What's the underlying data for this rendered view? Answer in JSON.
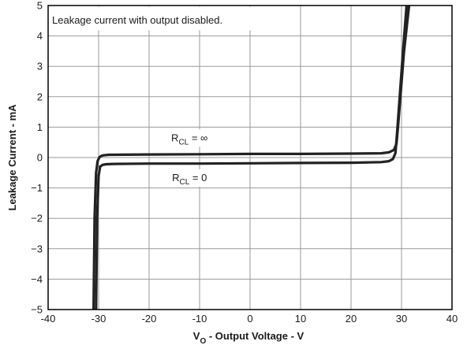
{
  "chart_data": {
    "type": "line",
    "title": "",
    "annotation": "Leakage current with output disabled.",
    "xlabel": {
      "main": "V",
      "sub": "O",
      "rest": " - Output Voltage - V"
    },
    "ylabel": "Leakage Current - mA",
    "xlim": [
      -40,
      40
    ],
    "ylim": [
      -5,
      5
    ],
    "x_ticks": [
      -40,
      -30,
      -20,
      -10,
      0,
      10,
      20,
      30,
      40
    ],
    "x_tick_labels": [
      "-40",
      "-30",
      "-20",
      "-10",
      "0",
      "10",
      "20",
      "30",
      "40"
    ],
    "y_ticks": [
      -5,
      -4,
      -3,
      -2,
      -1,
      0,
      1,
      2,
      3,
      4,
      5
    ],
    "y_tick_labels": [
      "−5",
      "−4",
      "−3",
      "−2",
      "−1",
      "0",
      "1",
      "2",
      "3",
      "4",
      "5"
    ],
    "grid": true,
    "series": [
      {
        "name": "RCL = ∞",
        "label": {
          "main": "R",
          "sub": "CL",
          "rest": " = ∞"
        },
        "x": [
          -31.0,
          -30.8,
          -30.5,
          -30.2,
          -29.8,
          -29.2,
          -28,
          -20,
          -10,
          0,
          10,
          20,
          26,
          27.5,
          28.5,
          29.0,
          29.3,
          30.5,
          31.5
        ],
        "y": [
          -5,
          -2.0,
          -0.5,
          -0.12,
          0.02,
          0.07,
          0.09,
          0.1,
          0.11,
          0.12,
          0.12,
          0.13,
          0.14,
          0.17,
          0.25,
          0.45,
          1.0,
          3.5,
          5
        ]
      },
      {
        "name": "RCL = 0",
        "label": {
          "main": "R",
          "sub": "CL",
          "rest": " = 0"
        },
        "x": [
          -30.5,
          -30.3,
          -30.0,
          -29.7,
          -29.2,
          -28.5,
          -27,
          -20,
          -10,
          0,
          10,
          20,
          26,
          27.5,
          28.3,
          28.8,
          29.2,
          30.3,
          31.0
        ],
        "y": [
          -5,
          -2.0,
          -0.6,
          -0.3,
          -0.24,
          -0.22,
          -0.21,
          -0.2,
          -0.2,
          -0.19,
          -0.18,
          -0.17,
          -0.15,
          -0.12,
          -0.05,
          0.15,
          1.0,
          3.5,
          5
        ]
      }
    ],
    "colors": {
      "line": "#222222",
      "grid": "#9a9a9a",
      "frame": "#000000"
    }
  }
}
